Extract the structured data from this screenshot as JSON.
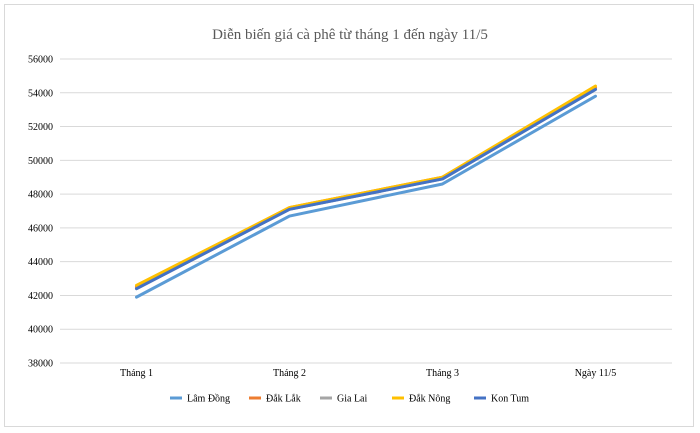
{
  "chart_data": {
    "type": "line",
    "title": "Diễn biến giá cà phê từ tháng 1 đến ngày 11/5",
    "categories": [
      "Tháng 1",
      "Tháng 2",
      "Tháng 3",
      "Ngày 11/5"
    ],
    "ylim": [
      38000,
      56000
    ],
    "yticks": [
      38000,
      40000,
      42000,
      44000,
      46000,
      48000,
      50000,
      52000,
      54000,
      56000
    ],
    "grid": true,
    "legend_position": "bottom",
    "series": [
      {
        "name": "Lâm Đồng",
        "color": "#5b9bd5",
        "values": [
          41900,
          46700,
          48600,
          53800
        ]
      },
      {
        "name": "Đắk Lắk",
        "color": "#ed7d31",
        "values": [
          42500,
          47200,
          49000,
          54300
        ]
      },
      {
        "name": "Gia Lai",
        "color": "#a5a5a5",
        "values": [
          42400,
          47100,
          48900,
          54200
        ]
      },
      {
        "name": "Đắk Nông",
        "color": "#ffc000",
        "values": [
          42600,
          47200,
          49000,
          54400
        ]
      },
      {
        "name": "Kon Tum",
        "color": "#4472c4",
        "values": [
          42400,
          47100,
          48900,
          54200
        ]
      }
    ]
  }
}
